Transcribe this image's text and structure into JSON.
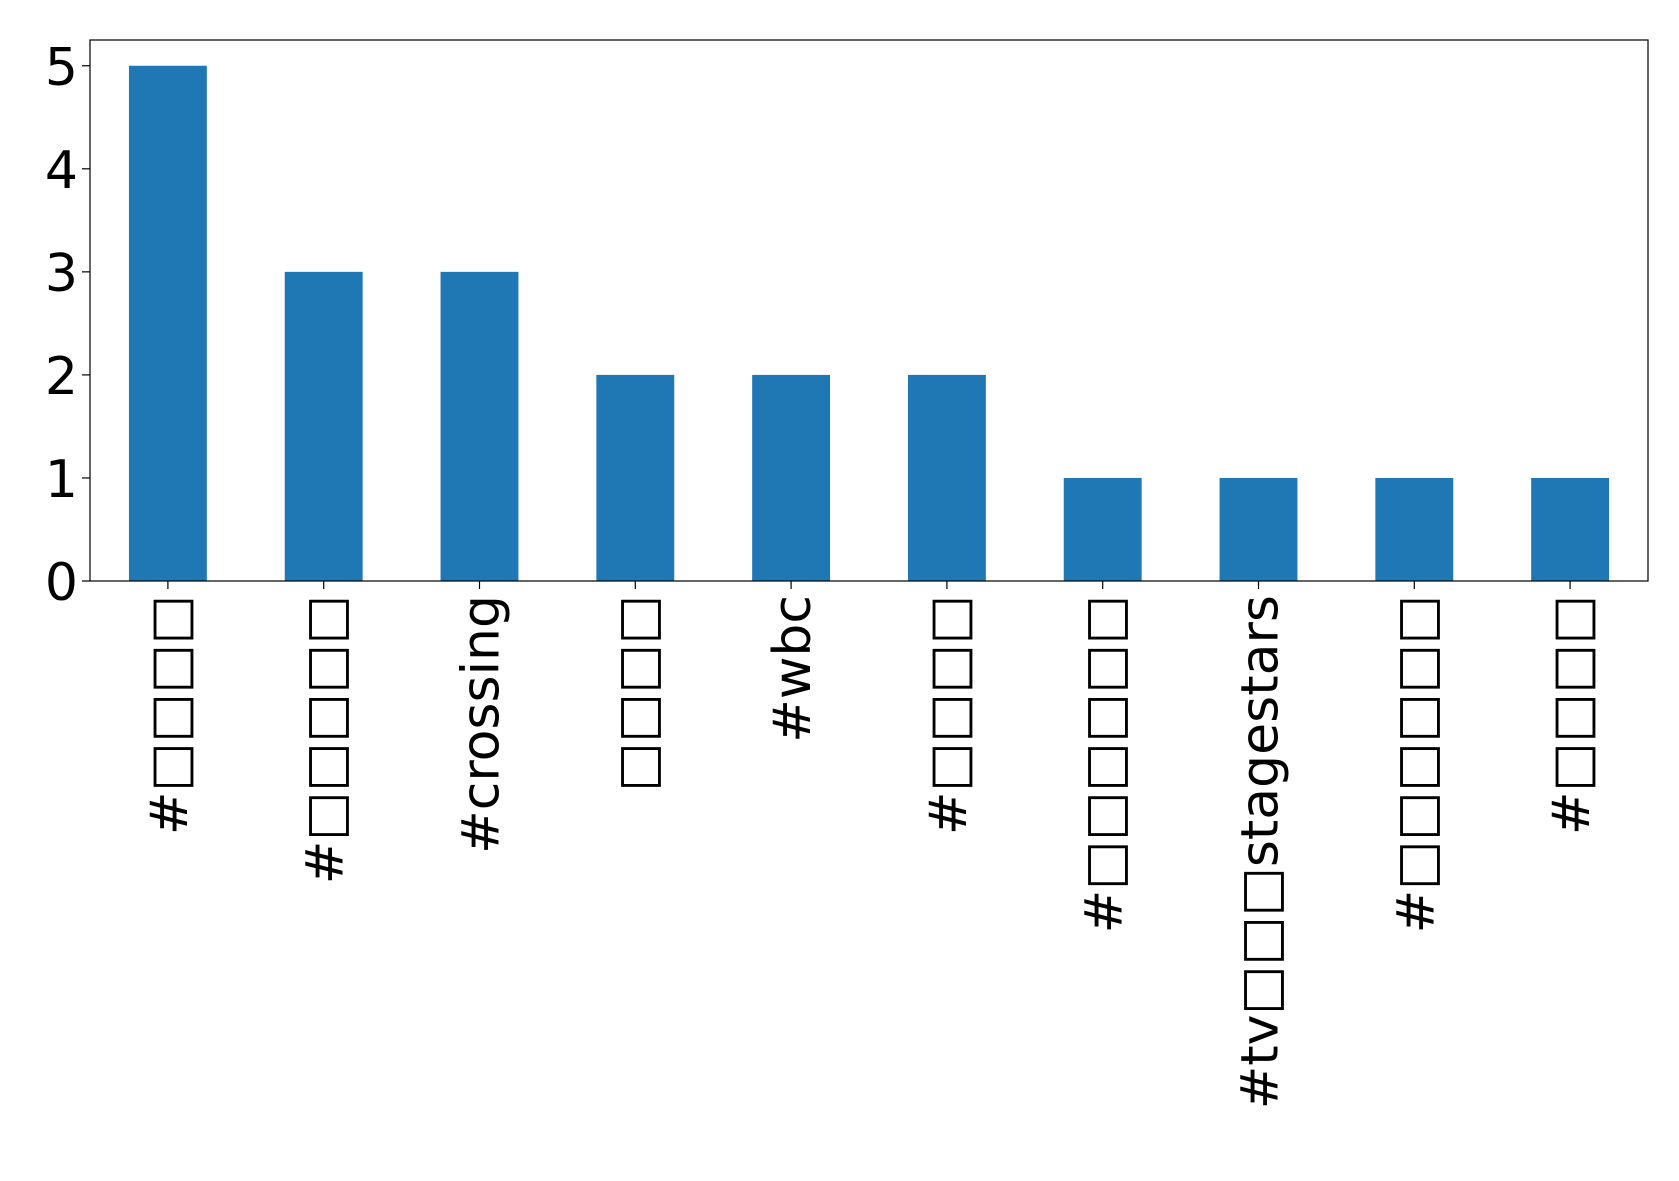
{
  "chart_data": {
    "type": "bar",
    "categories": [
      "#□□□□",
      "#□□□□□",
      "#crossing",
      "□□□□",
      "#wbc",
      "#□□□□",
      "#□□□□□□",
      "#tv□□□stagestars",
      "#□□□□□□",
      "#□□□□"
    ],
    "values": [
      5,
      3,
      3,
      2,
      2,
      2,
      1,
      1,
      1,
      1
    ],
    "color": "#1f77b4",
    "ylim": [
      0,
      5.25
    ],
    "yticks": [
      0,
      1,
      2,
      3,
      4,
      5
    ],
    "grid": false
  }
}
